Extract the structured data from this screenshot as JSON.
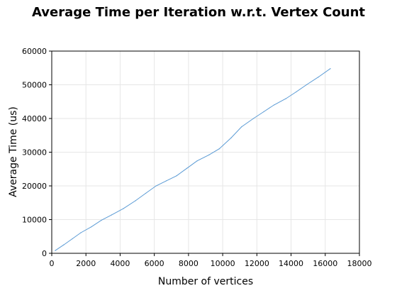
{
  "chart_data": {
    "type": "line",
    "title": "Average Time per Iteration w.r.t. Vertex Count",
    "xlabel": "Number of vertices",
    "ylabel": "Average Time (us)",
    "xlim": [
      0,
      18000
    ],
    "ylim": [
      0,
      60000
    ],
    "x_ticks": [
      0,
      2000,
      4000,
      6000,
      8000,
      10000,
      12000,
      14000,
      16000,
      18000
    ],
    "y_ticks": [
      0,
      10000,
      20000,
      30000,
      40000,
      50000,
      60000
    ],
    "x_tick_labels": [
      "0",
      "2000",
      "4000",
      "6000",
      "8000",
      "10000",
      "12000",
      "14000",
      "16000",
      "18000"
    ],
    "y_tick_labels": [
      "0",
      "10000",
      "20000",
      "30000",
      "40000",
      "50000",
      "60000"
    ],
    "grid": true,
    "legend": "none",
    "series": [
      {
        "color": "#5b9bd5",
        "x": [
          200,
          700,
          1200,
          1700,
          2300,
          2900,
          3500,
          4200,
          4900,
          5500,
          6100,
          6700,
          7300,
          7900,
          8500,
          9200,
          9800,
          10500,
          11100,
          11800,
          12400,
          13000,
          13700,
          14300,
          14900,
          15600,
          16300
        ],
        "y": [
          800,
          2500,
          4300,
          6100,
          7800,
          9800,
          11400,
          13300,
          15600,
          17800,
          20000,
          21500,
          23000,
          25200,
          27400,
          29200,
          31000,
          34300,
          37500,
          40000,
          42000,
          44000,
          45900,
          47900,
          50000,
          52300,
          54800
        ]
      }
    ]
  }
}
